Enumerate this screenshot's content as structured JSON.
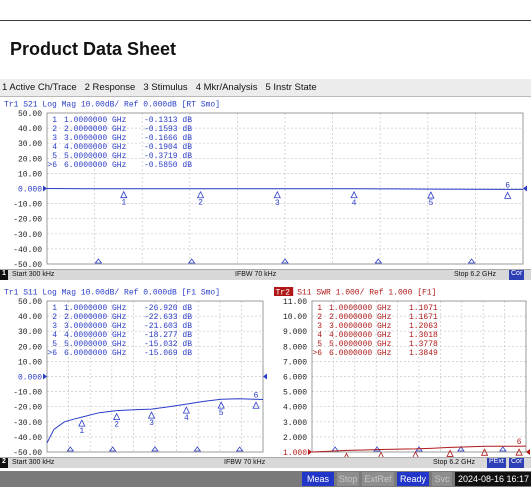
{
  "document": {
    "title": "Product Data Sheet"
  },
  "menu": [
    {
      "label": "1 Active Ch/Trace"
    },
    {
      "label": "2 Response"
    },
    {
      "label": "3 Stimulus"
    },
    {
      "label": "4 Mkr/Analysis"
    },
    {
      "label": "5 Instr State"
    }
  ],
  "channel1": {
    "number": "1",
    "start": "Start 300 kHz",
    "ifbw": "IFBW 70 kHz",
    "stop": "Stop 6.2 GHz",
    "cor": "Cor"
  },
  "channel2": {
    "number": "2",
    "start": "Start 300 kHz",
    "ifbw": "IFBW 70 kHz",
    "stop": "Stop 6.2 GHz",
    "pext": "PExt",
    "cor": "Cor"
  },
  "status": {
    "meas": "Meas",
    "stop": "Stop",
    "extref": "ExtRef",
    "ready": "Ready",
    "svc": "Svc",
    "datetime": "2024-08-16 16:17"
  },
  "chart_data": [
    {
      "type": "line",
      "title": "Tr1  S21  Log Mag 10.00dB/ Ref 0.000dB [RT Smo]",
      "y_ticks": [
        "50.00",
        "40.00",
        "30.00",
        "20.00",
        "10.00",
        "0.000",
        "-10.00",
        "-20.00",
        "-30.00",
        "-40.00",
        "-50.00"
      ],
      "ylim": [
        -50,
        50
      ],
      "xlim_ghz": [
        0.0003,
        6.2
      ],
      "ref_value": 0,
      "color": "#2a3cc8",
      "marker_table": [
        {
          "id": "1",
          "freq": "1.0000000 GHz",
          "value": "-0.1313 dB"
        },
        {
          "id": "2",
          "freq": "2.0000000 GHz",
          "value": "-0.1593 dB"
        },
        {
          "id": "3",
          "freq": "3.0000000 GHz",
          "value": "-0.1666 dB"
        },
        {
          "id": "4",
          "freq": "4.0000000 GHz",
          "value": "-0.1904 dB"
        },
        {
          "id": "5",
          "freq": "5.0000000 GHz",
          "value": "-0.3719 dB"
        },
        {
          "id": ">6",
          "freq": "6.0000000 GHz",
          "value": "-0.5850 dB"
        }
      ],
      "series": [
        {
          "x": [
            0.0003,
            0.5,
            1,
            1.5,
            2,
            2.5,
            3,
            3.5,
            4,
            4.5,
            5,
            5.5,
            6,
            6.2
          ],
          "y": [
            0,
            -0.1,
            -0.13,
            -0.15,
            -0.16,
            -0.17,
            -0.17,
            -0.18,
            -0.19,
            -0.25,
            -0.37,
            -0.45,
            -0.585,
            -0.62
          ]
        }
      ]
    },
    {
      "type": "line",
      "title": "Tr1  S11  Log Mag 10.00dB/ Ref 0.000dB [F1 Smo]",
      "y_ticks": [
        "50.00",
        "40.00",
        "30.00",
        "20.00",
        "10.00",
        "0.000",
        "-10.00",
        "-20.00",
        "-30.00",
        "-40.00",
        "-50.00"
      ],
      "ylim": [
        -50,
        50
      ],
      "xlim_ghz": [
        0.0003,
        6.2
      ],
      "ref_value": 0,
      "color": "#2a3cc8",
      "marker_table": [
        {
          "id": "1",
          "freq": "1.0000000 GHz",
          "value": "-26.920 dB"
        },
        {
          "id": "2",
          "freq": "2.0000000 GHz",
          "value": "-22.633 dB"
        },
        {
          "id": "3",
          "freq": "3.0000000 GHz",
          "value": "-21.603 dB"
        },
        {
          "id": "4",
          "freq": "4.0000000 GHz",
          "value": "-18.277 dB"
        },
        {
          "id": "5",
          "freq": "5.0000000 GHz",
          "value": "-15.032 dB"
        },
        {
          "id": ">6",
          "freq": "6.0000000 GHz",
          "value": "-15.069 dB"
        }
      ],
      "series": [
        {
          "x": [
            0.0003,
            0.2,
            0.5,
            0.8,
            1,
            1.5,
            2,
            2.5,
            3,
            3.5,
            4,
            4.5,
            5,
            5.5,
            6,
            6.2
          ],
          "y": [
            -44,
            -35,
            -30,
            -28,
            -26.9,
            -24,
            -22.6,
            -22,
            -21.6,
            -20,
            -18.3,
            -16.5,
            -15.0,
            -14.8,
            -15.07,
            -15.2
          ]
        }
      ]
    },
    {
      "type": "line",
      "title_prefix": "Tr2",
      "title": "S11  SWR 1.000/ Ref 1.000  [F1]",
      "y_ticks": [
        "11.00",
        "10.00",
        "9.000",
        "8.000",
        "7.000",
        "6.000",
        "5.000",
        "4.000",
        "3.000",
        "2.000",
        "1.000"
      ],
      "ylim": [
        1,
        11
      ],
      "xlim_ghz": [
        0.0003,
        6.2
      ],
      "ref_value": 1,
      "color": "#b01818",
      "marker_table": [
        {
          "id": "1",
          "freq": "1.0000000 GHz",
          "value": "1.1071"
        },
        {
          "id": "2",
          "freq": "2.0000000 GHz",
          "value": "1.1671"
        },
        {
          "id": "3",
          "freq": "3.0000000 GHz",
          "value": "1.2063"
        },
        {
          "id": "4",
          "freq": "4.0000000 GHz",
          "value": "1.3018"
        },
        {
          "id": "5",
          "freq": "5.0000000 GHz",
          "value": "1.3778"
        },
        {
          "id": ">6",
          "freq": "6.0000000 GHz",
          "value": "1.3849"
        }
      ],
      "series": [
        {
          "x": [
            0.0003,
            0.5,
            1,
            1.5,
            2,
            2.5,
            3,
            3.5,
            4,
            4.5,
            5,
            5.5,
            6,
            6.2
          ],
          "y": [
            1.0,
            1.05,
            1.107,
            1.13,
            1.167,
            1.19,
            1.206,
            1.25,
            1.302,
            1.34,
            1.378,
            1.38,
            1.385,
            1.39
          ]
        }
      ]
    }
  ]
}
